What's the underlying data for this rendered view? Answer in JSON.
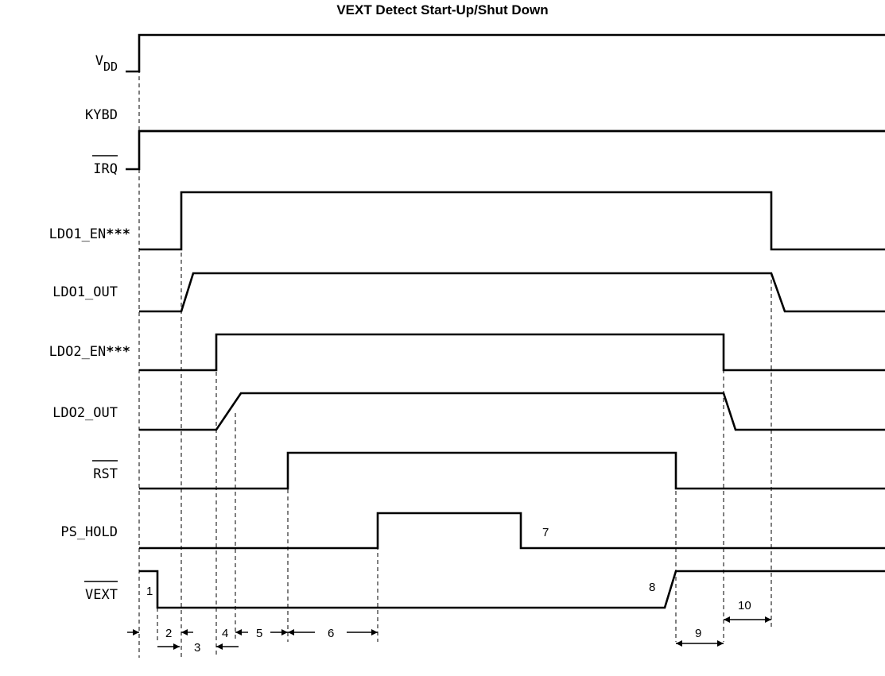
{
  "title": "VEXT Detect Start-Up/Shut Down",
  "signals": [
    {
      "id": "vdd",
      "label": "V",
      "sub": "DD",
      "overline": false
    },
    {
      "id": "kybd",
      "label": "KYBD",
      "overline": false
    },
    {
      "id": "irq",
      "label": "IRQ",
      "overline": true
    },
    {
      "id": "ldo1-en",
      "label": "LDO1_EN",
      "suffix": "***",
      "overline": false
    },
    {
      "id": "ldo1-out",
      "label": "LDO1_OUT",
      "overline": false
    },
    {
      "id": "ldo2-en",
      "label": "LDO2_EN",
      "suffix": "***",
      "overline": false
    },
    {
      "id": "ldo2-out",
      "label": "LDO2_OUT",
      "overline": false
    },
    {
      "id": "rst",
      "label": "RST",
      "overline": true
    },
    {
      "id": "ps-hold",
      "label": "PS_HOLD",
      "overline": false
    },
    {
      "id": "vext",
      "label": "VEXT",
      "overline": true
    }
  ],
  "markers": [
    "1",
    "2",
    "3",
    "4",
    "5",
    "6",
    "7",
    "8",
    "9",
    "10"
  ]
}
